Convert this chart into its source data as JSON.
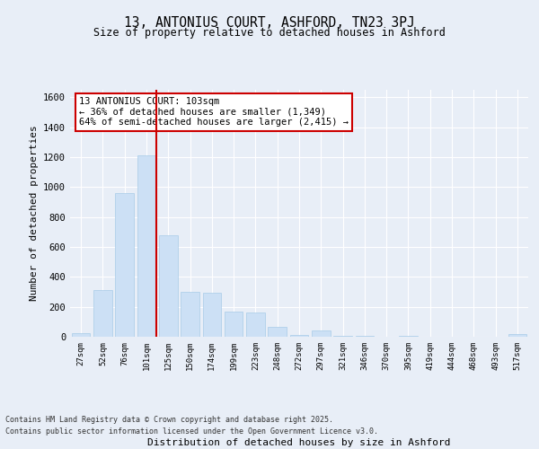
{
  "title_line1": "13, ANTONIUS COURT, ASHFORD, TN23 3PJ",
  "title_line2": "Size of property relative to detached houses in Ashford",
  "xlabel": "Distribution of detached houses by size in Ashford",
  "ylabel": "Number of detached properties",
  "categories": [
    "27sqm",
    "52sqm",
    "76sqm",
    "101sqm",
    "125sqm",
    "150sqm",
    "174sqm",
    "199sqm",
    "223sqm",
    "248sqm",
    "272sqm",
    "297sqm",
    "321sqm",
    "346sqm",
    "370sqm",
    "395sqm",
    "419sqm",
    "444sqm",
    "468sqm",
    "493sqm",
    "517sqm"
  ],
  "values": [
    25,
    310,
    960,
    1210,
    680,
    300,
    295,
    170,
    160,
    65,
    15,
    45,
    5,
    5,
    0,
    4,
    0,
    0,
    0,
    0,
    18
  ],
  "bar_color": "#cce0f5",
  "bar_edge_color": "#a8cce8",
  "vline_color": "#cc0000",
  "vline_x": 3.45,
  "annotation_text": "13 ANTONIUS COURT: 103sqm\n← 36% of detached houses are smaller (1,349)\n64% of semi-detached houses are larger (2,415) →",
  "annotation_box_facecolor": "#ffffff",
  "annotation_box_edgecolor": "#cc0000",
  "ylim": [
    0,
    1650
  ],
  "yticks": [
    0,
    200,
    400,
    600,
    800,
    1000,
    1200,
    1400,
    1600
  ],
  "background_color": "#e8eef7",
  "grid_color": "#ffffff",
  "footnote1": "Contains HM Land Registry data © Crown copyright and database right 2025.",
  "footnote2": "Contains public sector information licensed under the Open Government Licence v3.0."
}
